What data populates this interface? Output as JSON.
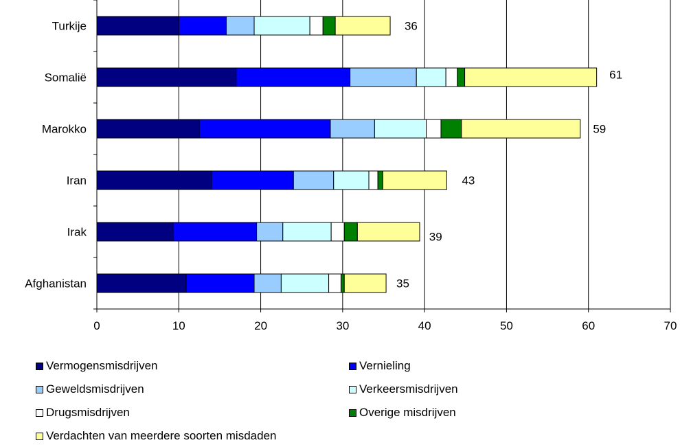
{
  "chart_data": {
    "type": "bar",
    "orientation": "horizontal",
    "stacked": true,
    "categories": [
      "Turkije",
      "Somalië",
      "Marokko",
      "Iran",
      "Irak",
      "Afghanistan"
    ],
    "series": [
      {
        "name": "Vermogensmisdrijven",
        "color": "#000080",
        "values": [
          10,
          17,
          12.5,
          14,
          9.3,
          10.9
        ]
      },
      {
        "name": "Vernieling",
        "color": "#0000FF",
        "values": [
          5.8,
          13.9,
          16,
          10,
          10.2,
          8.3
        ]
      },
      {
        "name": "Geweldsmisdrijven",
        "color": "#99CCFF",
        "values": [
          3.4,
          8.1,
          5.4,
          4.9,
          3.2,
          3.3
        ]
      },
      {
        "name": "Verkeersmisdrijven",
        "color": "#CCFFFF",
        "values": [
          6.8,
          3.6,
          6.3,
          4.3,
          5.9,
          5.8
        ]
      },
      {
        "name": "Drugsmisdrijven",
        "color": "#FFFFFF",
        "values": [
          1.6,
          1.4,
          1.8,
          1.1,
          1.6,
          1.5
        ]
      },
      {
        "name": "Overige misdrijven",
        "color": "#008000",
        "values": [
          1.5,
          0.9,
          2.5,
          0.6,
          1.6,
          0.4
        ]
      },
      {
        "name": "Verdachten van meerdere soorten misdaden",
        "color": "#FFFF99",
        "values": [
          6.7,
          16.1,
          14.5,
          7.8,
          7.6,
          5.1
        ]
      }
    ],
    "totals": [
      "36",
      "61",
      "59",
      "43",
      "39",
      "35"
    ],
    "xlim": [
      0,
      70
    ],
    "xticks": [
      "0",
      "10",
      "20",
      "30",
      "40",
      "50",
      "60",
      "70"
    ],
    "grid": "vertical",
    "legend_position": "bottom"
  }
}
